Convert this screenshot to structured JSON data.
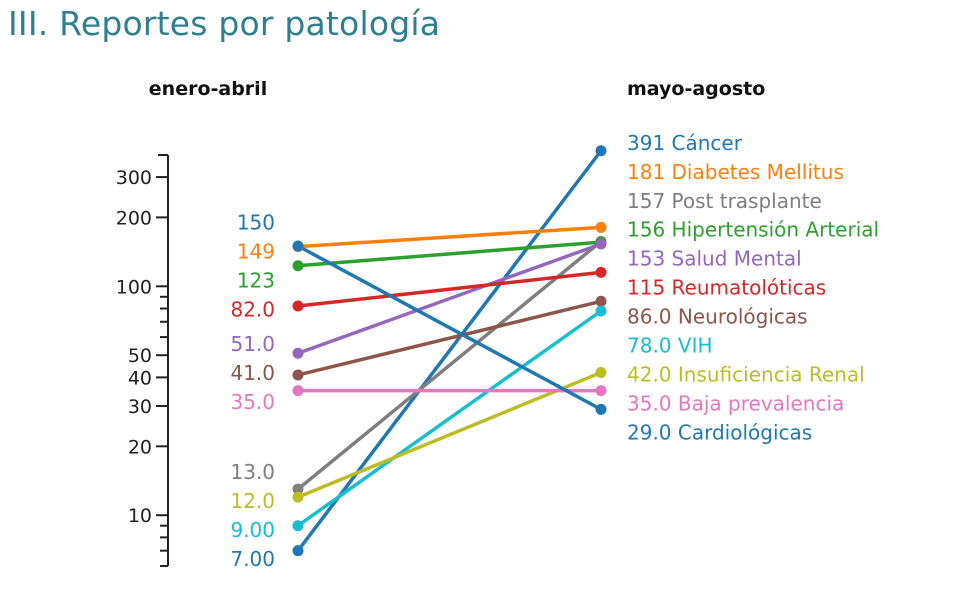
{
  "page": {
    "title": "III. Reportes por patología"
  },
  "chart_data": {
    "type": "line",
    "subtype": "slope",
    "title": "III. Reportes por patología",
    "categories": [
      "enero-abril",
      "mayo-agosto"
    ],
    "y_scale": "log",
    "ylim": [
      6,
      390
    ],
    "y_ticks": [
      10,
      20,
      30,
      40,
      50,
      100,
      200,
      300
    ],
    "y_tick_labels": [
      "10",
      "20",
      "30",
      "40",
      "50",
      "100",
      "200",
      "300"
    ],
    "series": [
      {
        "name": "Cáncer",
        "color": "#1f77b4",
        "values": [
          7,
          391
        ],
        "labels": [
          "7.00",
          "391"
        ]
      },
      {
        "name": "Diabetes Mellitus",
        "color": "#ff7f0e",
        "values": [
          149,
          181
        ],
        "labels": [
          "149",
          "181"
        ]
      },
      {
        "name": "Post trasplante",
        "color": "#7f7f7f",
        "values": [
          13,
          157
        ],
        "labels": [
          "13.0",
          "157"
        ]
      },
      {
        "name": "Hipertensión Arterial",
        "color": "#2ca02c",
        "values": [
          123,
          156
        ],
        "labels": [
          "123",
          "156"
        ]
      },
      {
        "name": "Salud Mental",
        "color": "#9467bd",
        "values": [
          51,
          153
        ],
        "labels": [
          "51.0",
          "153"
        ]
      },
      {
        "name": "Reumatolóticas",
        "color": "#d62728",
        "values": [
          82,
          115
        ],
        "labels": [
          "82.0",
          "115"
        ]
      },
      {
        "name": "Neurológicas",
        "color": "#8c564b",
        "values": [
          41,
          86
        ],
        "labels": [
          "41.0",
          "86.0"
        ]
      },
      {
        "name": "VIH",
        "color": "#17becf",
        "values": [
          9,
          78
        ],
        "labels": [
          "9.00",
          "78.0"
        ]
      },
      {
        "name": "Insuficiencia Renal",
        "color": "#bcbd22",
        "values": [
          12,
          42
        ],
        "labels": [
          "12.0",
          "42.0"
        ]
      },
      {
        "name": "Baja prevalencia",
        "color": "#e377c2",
        "values": [
          35,
          35
        ],
        "labels": [
          "35.0",
          "35.0"
        ]
      },
      {
        "name": "Cardiológicas",
        "color": "#1f77b4",
        "values": [
          150,
          29
        ],
        "labels": [
          "150",
          "29.0"
        ]
      }
    ],
    "grid": false,
    "legend": "right"
  }
}
